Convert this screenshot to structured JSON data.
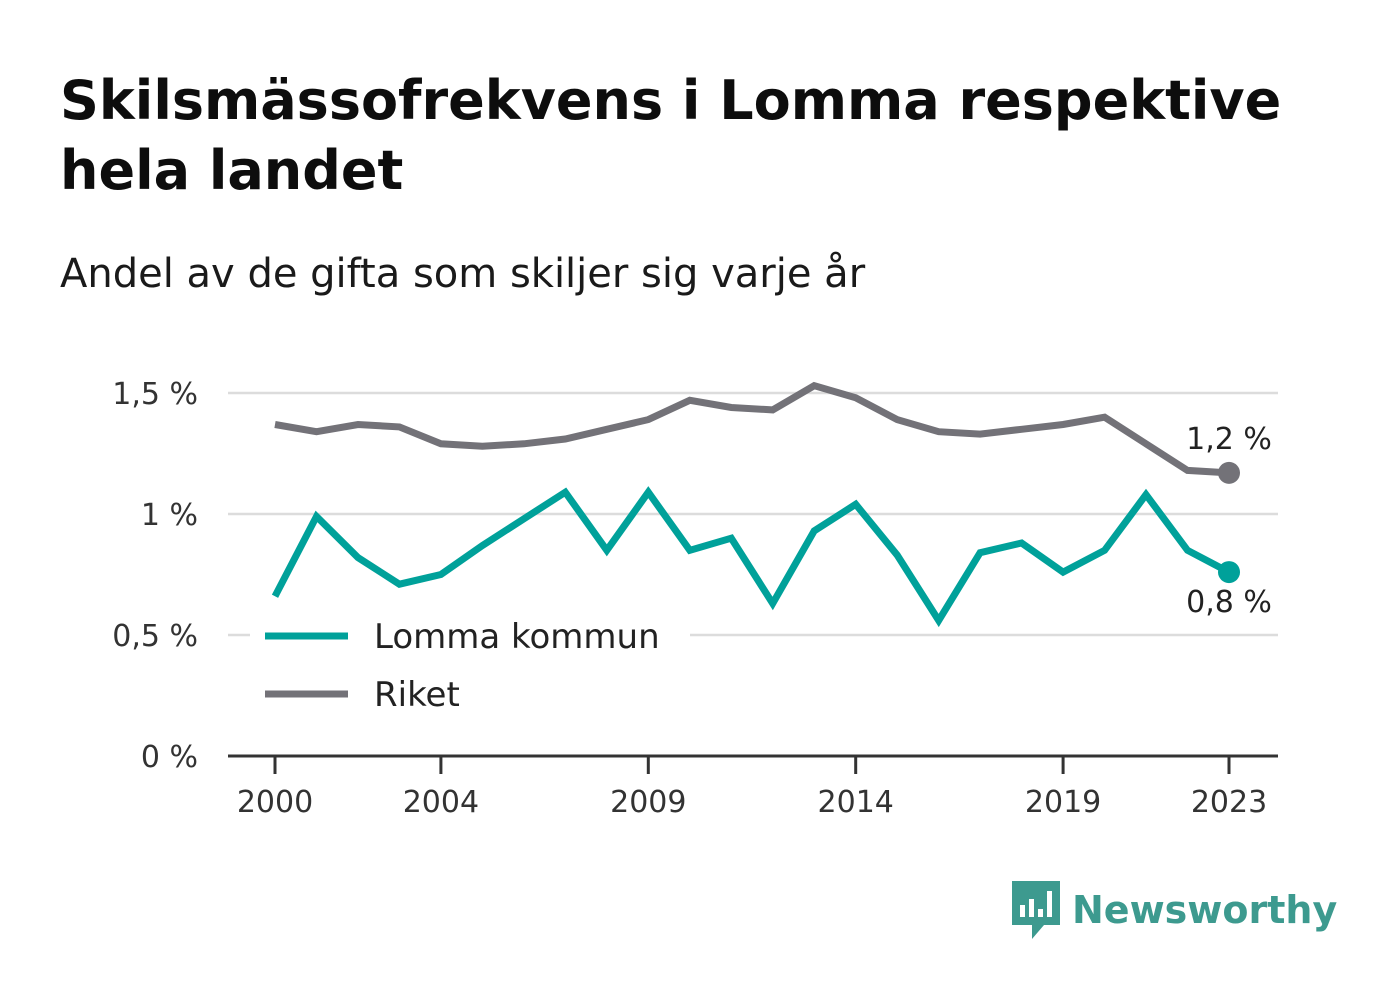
{
  "title": "Skilsmässofrekvens i Lomma respektive hela landet",
  "subtitle": "Andel av de gifta som skiljer sig varje år",
  "brand": {
    "name": "Newsworthy",
    "color": "#3d9a8f",
    "icon": "newsworthy-bar-chart-icon"
  },
  "chart_data": {
    "type": "line",
    "x": [
      2000,
      2001,
      2002,
      2003,
      2004,
      2005,
      2006,
      2007,
      2008,
      2009,
      2010,
      2011,
      2012,
      2013,
      2014,
      2015,
      2016,
      2017,
      2018,
      2019,
      2020,
      2021,
      2022,
      2023
    ],
    "x_ticks": [
      2000,
      2004,
      2009,
      2014,
      2019,
      2023
    ],
    "x_tick_labels": [
      "2000",
      "2004",
      "2009",
      "2014",
      "2019",
      "2023"
    ],
    "ylim": [
      0,
      1.5
    ],
    "y_ticks": [
      0,
      0.5,
      1,
      1.5
    ],
    "y_tick_labels": [
      "0 %",
      "0,5 %",
      "1 %",
      "1,5 %"
    ],
    "grid": true,
    "legend_position": "bottom-left",
    "series": [
      {
        "name": "Lomma kommun",
        "color": "#00a19a",
        "values": [
          0.66,
          0.99,
          0.82,
          0.71,
          0.75,
          0.87,
          0.98,
          1.09,
          0.85,
          1.09,
          0.85,
          0.9,
          0.63,
          0.93,
          1.04,
          0.83,
          0.56,
          0.84,
          0.88,
          0.76,
          0.85,
          1.08,
          0.85,
          0.76
        ],
        "end_label": "0,8 %"
      },
      {
        "name": "Riket",
        "color": "#737278",
        "values": [
          1.37,
          1.34,
          1.37,
          1.36,
          1.29,
          1.28,
          1.29,
          1.31,
          1.35,
          1.39,
          1.47,
          1.44,
          1.43,
          1.53,
          1.48,
          1.39,
          1.34,
          1.33,
          1.35,
          1.37,
          1.4,
          1.29,
          1.18,
          1.17
        ],
        "end_label": "1,2 %"
      }
    ]
  }
}
